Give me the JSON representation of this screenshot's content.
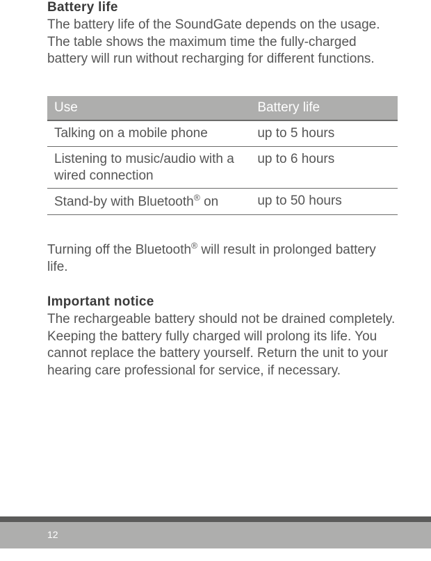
{
  "section1": {
    "heading": "Battery life",
    "para": "The battery life of the SoundGate depends on the usage. The table shows the maximum time the fully-charged battery will run without recharging for different functions."
  },
  "table": {
    "headers": [
      "Use",
      "Battery life"
    ],
    "rows": [
      {
        "use": "Talking on a mobile phone",
        "life": "up to 5 hours"
      },
      {
        "use_html": "Listening to music/audio with a wired connection",
        "life": "up to 6 hours"
      },
      {
        "use_html": "Stand-by with Bluetooth<sup>®</sup> on",
        "life": "up to 50 hours"
      }
    ],
    "header_bg": "#aeaead",
    "header_color": "#ffffff",
    "border_color": "#6b6b6a"
  },
  "para_after_table_html": "Turning off the Bluetooth<sup>®</sup> will result in prolonged battery life.",
  "section2": {
    "heading": "Important notice",
    "para": "The rechargeable battery should not be drained completely. Keeping the battery fully charged will prolong its life. You cannot replace the battery yourself. Return the unit to your hearing care professional for service, if necessary."
  },
  "page_number": "12",
  "colors": {
    "text": "#555555",
    "heading": "#3a3a3a",
    "footer_bar": "#aeaead",
    "footer_strip": "#5b5b5a",
    "background": "#ffffff"
  }
}
